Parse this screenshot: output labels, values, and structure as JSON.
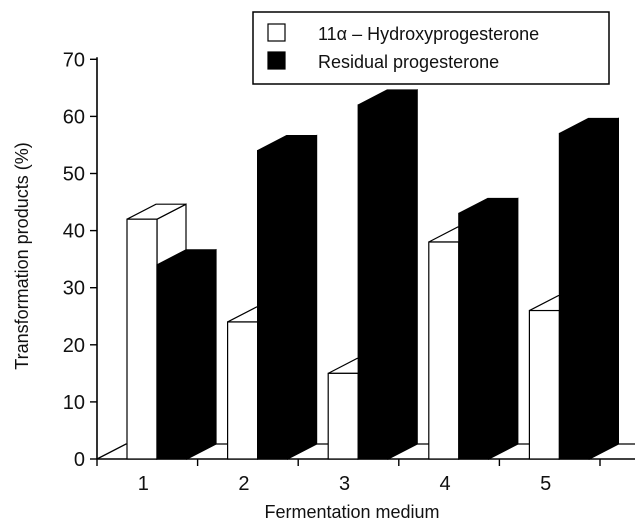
{
  "chart_data": {
    "type": "bar",
    "title": "",
    "xlabel": "Fermentation medium",
    "ylabel": "Transformation products (%)",
    "ylim": [
      0,
      70
    ],
    "yticks": [
      0,
      10,
      20,
      30,
      40,
      50,
      60,
      70
    ],
    "categories": [
      "1",
      "2",
      "3",
      "4",
      "5"
    ],
    "series": [
      {
        "name": "11α – Hydroxyprogesterone",
        "color": "#ffffff",
        "values": [
          42,
          24,
          15,
          38,
          26
        ]
      },
      {
        "name": "Residual progesterone",
        "color": "#000000",
        "values": [
          34,
          54,
          62,
          43,
          57
        ]
      }
    ],
    "grid": false,
    "legend_position": "top-right",
    "style": "3d-bar"
  }
}
